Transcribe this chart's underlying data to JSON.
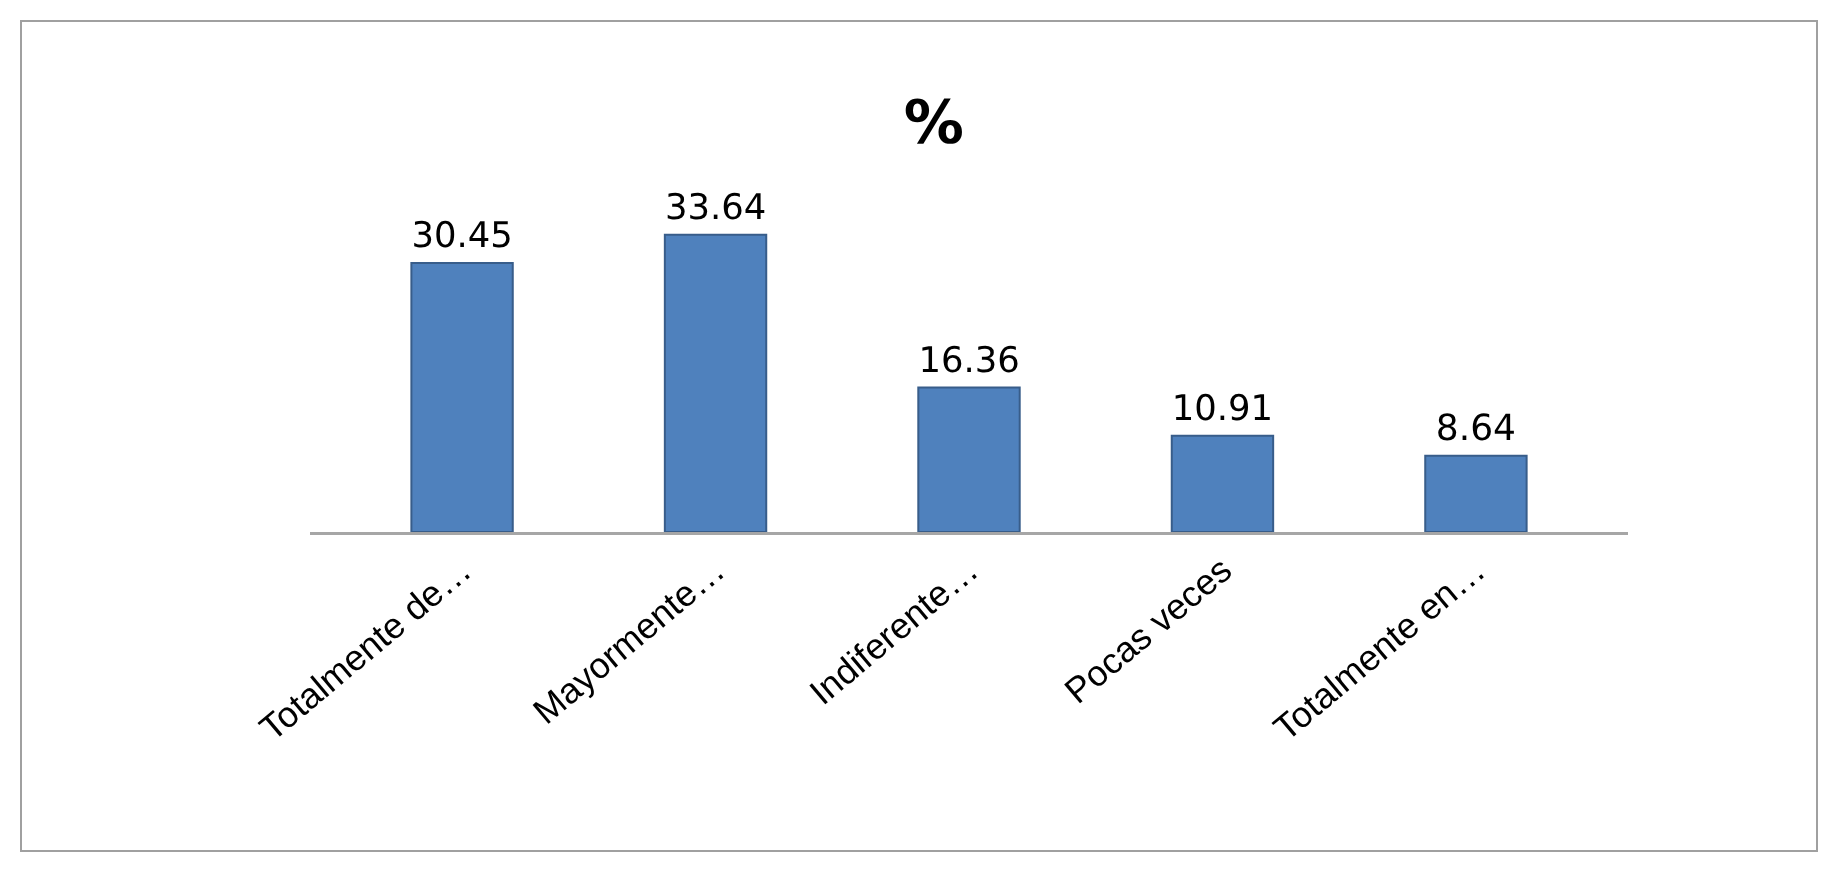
{
  "chart_data": {
    "type": "bar",
    "title": "%",
    "categories": [
      "Totalmente de…",
      "Mayormente…",
      "Indiferente…",
      "Pocas veces",
      "Totalmente en…"
    ],
    "values": [
      30.45,
      33.64,
      16.36,
      10.91,
      8.64
    ],
    "color": "#4f81bd",
    "data_labels": true,
    "grid": false,
    "legend": false
  }
}
